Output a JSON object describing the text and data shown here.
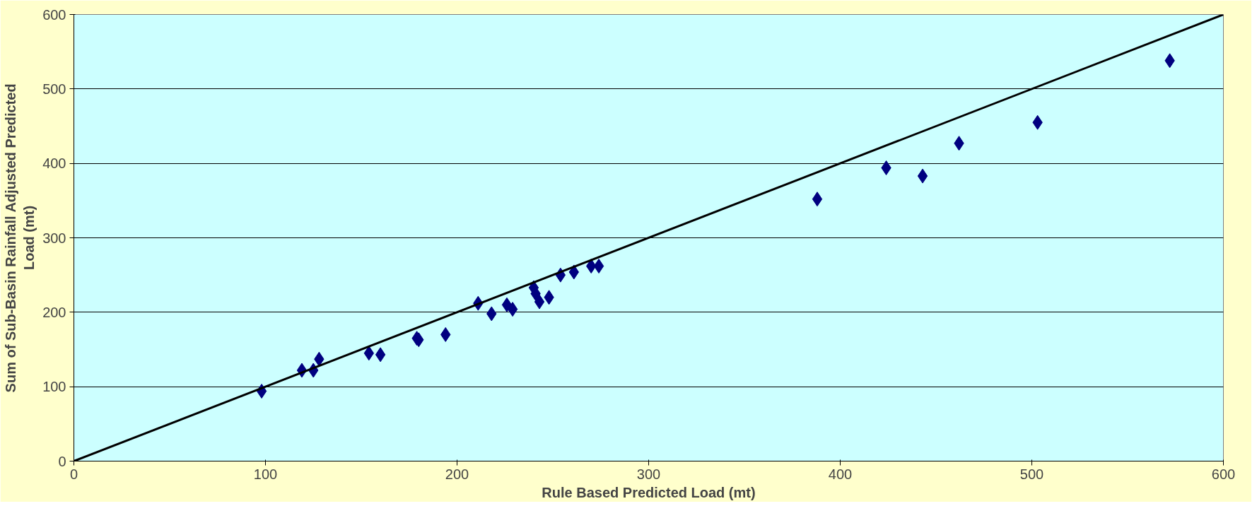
{
  "chart_data": {
    "type": "scatter",
    "xlabel": "Rule Based Predicted Load (mt)",
    "ylabel": "Sum of Sub-Basin Rainfall Adjusted Predicted Load (mt)",
    "xlim": [
      0,
      600
    ],
    "ylim": [
      0,
      600
    ],
    "xticks": [
      0,
      100,
      200,
      300,
      400,
      500,
      600
    ],
    "yticks": [
      0,
      100,
      200,
      300,
      400,
      500,
      600
    ],
    "grid": "y",
    "series": [
      {
        "color": "#000080",
        "marker": "diamond",
        "x": [
          98,
          119,
          125,
          128,
          154,
          160,
          179,
          180,
          194,
          211,
          218,
          226,
          229,
          240,
          241,
          243,
          248,
          254,
          261,
          270,
          274,
          388,
          424,
          443,
          462,
          503,
          572
        ],
        "values": [
          94,
          122,
          122,
          137,
          145,
          143,
          165,
          163,
          170,
          212,
          198,
          210,
          204,
          233,
          225,
          214,
          220,
          250,
          254,
          262,
          262,
          352,
          394,
          383,
          427,
          455,
          538
        ]
      },
      {
        "type": "line",
        "color": "#000000",
        "line_style": "solid",
        "x": [
          0,
          600
        ],
        "values": [
          0,
          600
        ]
      }
    ]
  }
}
